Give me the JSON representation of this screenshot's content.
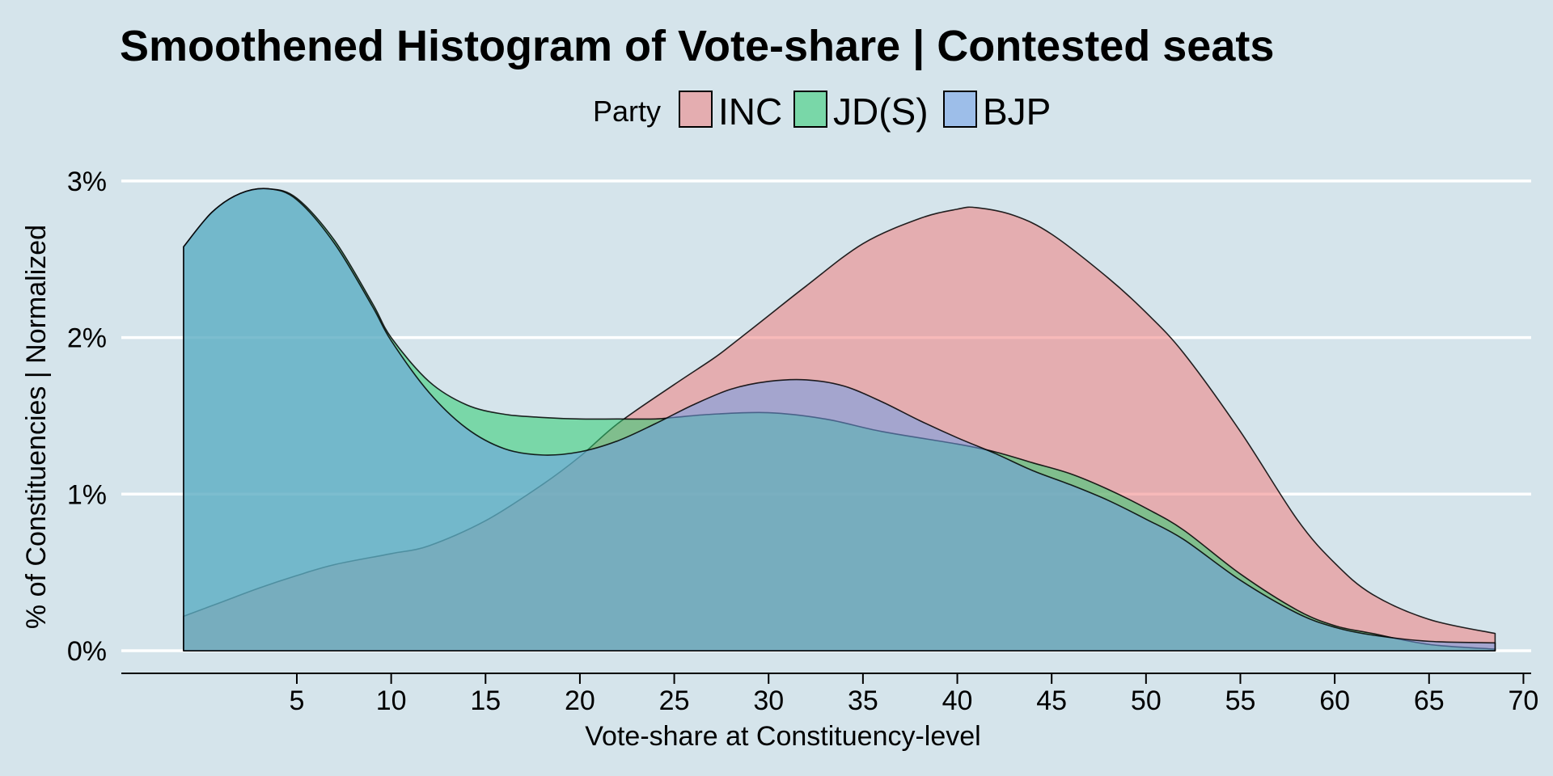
{
  "chart_data": {
    "type": "area",
    "title": "Smoothened Histogram of Vote-share |  Contested seats",
    "xlabel": "Vote-share at Constituency-level",
    "ylabel": "% of Constituencies | Normalized",
    "legend_title": "Party",
    "legend_position": "top",
    "xlim": [
      -4.5,
      71
    ],
    "ylim": [
      -0.15,
      3.0
    ],
    "x_ticks": [
      5,
      10,
      15,
      20,
      25,
      30,
      35,
      40,
      45,
      50,
      55,
      60,
      65,
      70
    ],
    "x_tick_labels": [
      "5",
      "10",
      "15",
      "20",
      "25",
      "30",
      "35",
      "40",
      "45",
      "50",
      "55",
      "60",
      "65",
      "70"
    ],
    "y_ticks": [
      0,
      1,
      2,
      3
    ],
    "y_tick_labels": [
      "0%",
      "1%",
      "2%",
      "3%"
    ],
    "grid": "horizontal",
    "series": [
      {
        "name": "INC",
        "color": "#f08080",
        "x": [
          -1,
          1,
          3,
          5,
          7,
          10,
          12,
          15,
          18,
          20,
          22,
          25,
          27,
          28,
          30,
          32,
          35,
          38,
          40,
          41,
          43,
          45,
          48,
          50,
          52,
          55,
          58,
          60,
          62,
          65,
          68.5
        ],
        "values": [
          0.22,
          0.31,
          0.4,
          0.48,
          0.55,
          0.62,
          0.67,
          0.83,
          1.06,
          1.24,
          1.45,
          1.7,
          1.86,
          1.95,
          2.14,
          2.33,
          2.6,
          2.76,
          2.82,
          2.83,
          2.78,
          2.66,
          2.38,
          2.16,
          1.9,
          1.4,
          0.84,
          0.56,
          0.36,
          0.2,
          0.11
        ]
      },
      {
        "name": "JD(S)",
        "color": "#2ecc71",
        "x": [
          -1,
          0.5,
          2,
          3.5,
          5,
          7,
          9,
          10,
          12,
          14,
          16,
          18,
          20,
          22,
          24,
          25,
          27,
          30,
          33,
          36,
          40,
          42,
          44,
          46,
          48,
          50,
          52,
          55,
          58,
          60,
          62,
          65,
          68.5
        ],
        "values": [
          2.58,
          2.8,
          2.92,
          2.95,
          2.89,
          2.62,
          2.22,
          2.0,
          1.72,
          1.57,
          1.51,
          1.49,
          1.48,
          1.48,
          1.48,
          1.49,
          1.51,
          1.52,
          1.48,
          1.4,
          1.32,
          1.27,
          1.2,
          1.13,
          1.03,
          0.91,
          0.77,
          0.49,
          0.26,
          0.16,
          0.11,
          0.04,
          0.01
        ]
      },
      {
        "name": "BJP",
        "color": "#6f9fe8",
        "x": [
          -1,
          0.5,
          2,
          3.5,
          5,
          7,
          9,
          10,
          12,
          14,
          16,
          18,
          20,
          22,
          24,
          26,
          28,
          30,
          32,
          34,
          36,
          38,
          40,
          42,
          44,
          46,
          48,
          50,
          52,
          55,
          58,
          60,
          62,
          65,
          68.5
        ],
        "values": [
          2.58,
          2.8,
          2.92,
          2.95,
          2.88,
          2.6,
          2.2,
          1.98,
          1.65,
          1.42,
          1.29,
          1.25,
          1.27,
          1.34,
          1.45,
          1.57,
          1.67,
          1.72,
          1.73,
          1.69,
          1.59,
          1.47,
          1.36,
          1.26,
          1.15,
          1.06,
          0.96,
          0.84,
          0.71,
          0.45,
          0.24,
          0.15,
          0.1,
          0.06,
          0.05
        ]
      }
    ]
  }
}
